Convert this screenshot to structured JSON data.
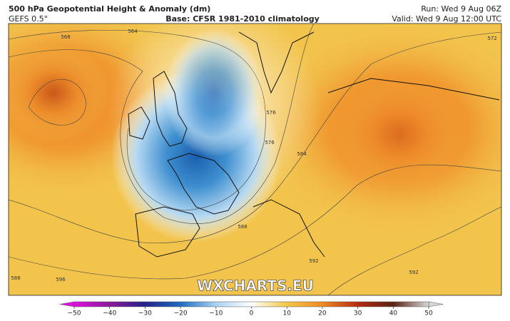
{
  "header": {
    "title": "500 hPa Geopotential Height & Anomaly (dm)",
    "model": "GEFS 0.5°",
    "base": "Base: CFSR 1981-2010 climatology",
    "run": "Run: Wed 9 Aug 06Z",
    "valid": "Valid: Wed 9 Aug 12:00 UTC"
  },
  "map": {
    "contour_labels": [
      "568",
      "564",
      "572",
      "576",
      "576",
      "584",
      "588",
      "592",
      "592",
      "596",
      "588"
    ],
    "watermark": "WXCHARTS.EU"
  },
  "colorbar": {
    "range": [
      -50,
      50
    ],
    "ticks": [
      {
        "value": -50,
        "label": "−50"
      },
      {
        "value": -40,
        "label": "−40"
      },
      {
        "value": -30,
        "label": "−30"
      },
      {
        "value": -20,
        "label": "−20"
      },
      {
        "value": -10,
        "label": "−10"
      },
      0,
      10,
      20,
      30,
      40,
      50
    ],
    "colors": [
      "#e010e0",
      "#8a1a9a",
      "#22228a",
      "#1f6cc0",
      "#a9d3f2",
      "#ffffff",
      "#f3c846",
      "#ef8a22",
      "#b82a12",
      "#5a2414",
      "#d8d8d8"
    ]
  }
}
